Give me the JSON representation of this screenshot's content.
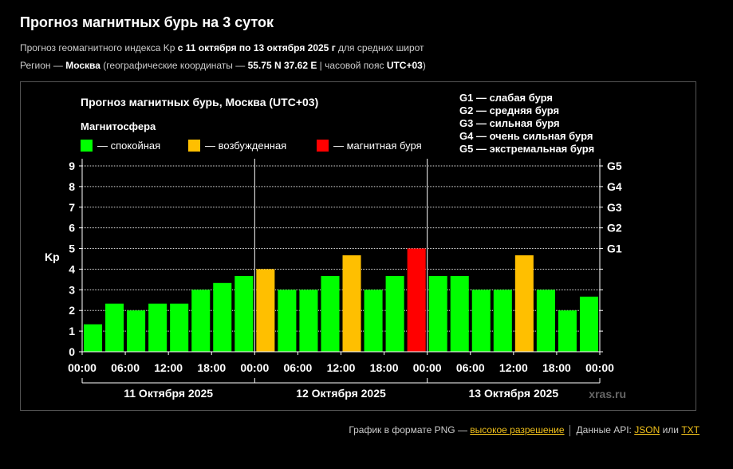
{
  "header": {
    "title": "Прогноз магнитных бурь на 3 суток",
    "line1": {
      "pre": "Прогноз геомагнитного индекса Kp",
      "range": " с 11 октября по 13 октября 2025 г",
      "post": " для средних широт"
    },
    "line2": {
      "pre": "Регион — ",
      "city": "Москва",
      "mid": " (географические координаты — ",
      "coords": "55.75 N 37.62 E",
      "mid2": " | часовой пояс ",
      "tz": "UTC+03",
      "post": ")"
    }
  },
  "chart_data": {
    "type": "bar",
    "title": "Прогноз магнитных бурь, Москва (UTC+03)",
    "legend_title": "Магнитосфера",
    "legend": [
      {
        "label": "— спокойная",
        "color": "#00ff00"
      },
      {
        "label": "— возбужденная",
        "color": "#ffbf00"
      },
      {
        "label": "— магнитная буря",
        "color": "#ff0000"
      }
    ],
    "storm_scale": [
      "G1 — слабая буря",
      "G2 — средняя буря",
      "G3 — сильная буря",
      "G4 — очень сильная буря",
      "G5 — экстремальная буря"
    ],
    "ylabel": "Kp",
    "ylim": [
      0,
      9
    ],
    "y_ticks": [
      "0",
      "1",
      "2",
      "3",
      "4",
      "5",
      "6",
      "7",
      "8",
      "9"
    ],
    "right_ticks": [
      {
        "kp": 5,
        "label": "G1"
      },
      {
        "kp": 6,
        "label": "G2"
      },
      {
        "kp": 7,
        "label": "G3"
      },
      {
        "kp": 8,
        "label": "G4"
      },
      {
        "kp": 9,
        "label": "G5"
      }
    ],
    "x_ticks": [
      "00:00",
      "06:00",
      "12:00",
      "18:00",
      "00:00",
      "06:00",
      "12:00",
      "18:00",
      "00:00",
      "06:00",
      "12:00",
      "18:00",
      "00:00"
    ],
    "days": [
      "11 Октября 2025",
      "12 Октября 2025",
      "13 Октября 2025"
    ],
    "values": [
      1.33,
      2.33,
      2.0,
      2.33,
      2.33,
      3.0,
      3.33,
      3.67,
      4.0,
      3.0,
      3.0,
      3.67,
      4.67,
      3.0,
      3.67,
      5.0,
      3.67,
      3.67,
      3.0,
      3.0,
      4.67,
      3.0,
      2.0,
      2.67
    ],
    "thresholds": {
      "active": 4,
      "storm": 5
    },
    "colors": {
      "quiet": "#00ff00",
      "active": "#ffbf00",
      "storm": "#ff0000",
      "grid": "#888888",
      "background": "#000000"
    },
    "watermark": "xras.ru"
  },
  "footer": {
    "png_text": "График в формате PNG — ",
    "png_link": "высокое разрешение",
    "api_text": "Данные API: ",
    "json_link": "JSON",
    "or_text": " или ",
    "txt_link": "TXT"
  }
}
